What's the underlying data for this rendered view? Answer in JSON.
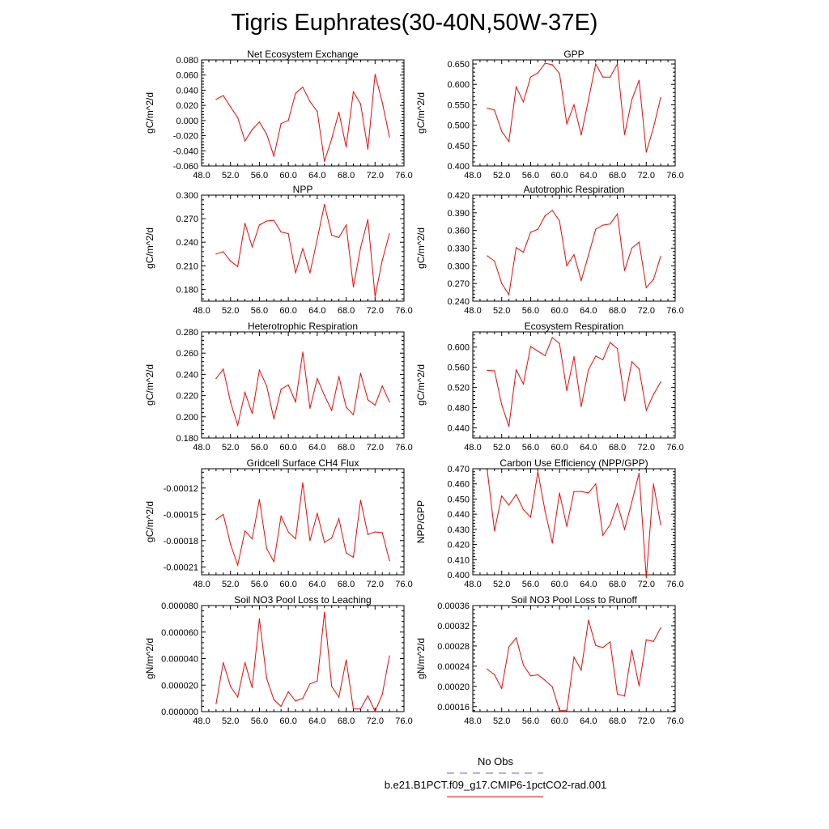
{
  "title": "Tigris Euphrates(30-40N,50W-37E)",
  "colors": {
    "model_line": "#ff0000",
    "obs_line": "#6666dd",
    "axis": "#000000"
  },
  "legend": {
    "obs_label": "No Obs",
    "model_label": "b.e21.B1PCT.f09_g17.CMIP6-1pctCO2-rad.001"
  },
  "chart_data": [
    {
      "type": "line",
      "title": "Net Ecosystem Exchange",
      "xlabel": "",
      "ylabel": "gC/m^2/d",
      "xlim": [
        48,
        76
      ],
      "ylim": [
        -0.06,
        0.08
      ],
      "xticks": [
        48,
        52,
        56,
        60,
        64,
        68,
        72,
        76
      ],
      "xtick_labels": [
        "48.0",
        "52.0",
        "56.0",
        "60.0",
        "64.0",
        "68.0",
        "72.0",
        "76.0"
      ],
      "yticks": [
        -0.06,
        -0.04,
        -0.02,
        0,
        0.02,
        0.04,
        0.06,
        0.08
      ],
      "ytick_labels": [
        "-0.060",
        "-0.040",
        "-0.020",
        "0.000",
        "0.020",
        "0.040",
        "0.060",
        "0.080"
      ],
      "x": [
        50,
        51,
        52,
        53,
        54,
        55,
        56,
        57,
        58,
        59,
        60,
        61,
        62,
        63,
        64,
        65,
        66,
        67,
        68,
        69,
        70,
        71,
        72,
        73,
        74
      ],
      "series": [
        {
          "values": [
            0.028,
            0.033,
            0.018,
            0.004,
            -0.027,
            -0.012,
            -0.002,
            -0.018,
            -0.047,
            -0.004,
            0.0,
            0.036,
            0.044,
            0.025,
            0.012,
            -0.054,
            -0.024,
            0.011,
            -0.035,
            0.038,
            0.022,
            -0.038,
            0.061,
            0.024,
            -0.022
          ]
        }
      ]
    },
    {
      "type": "line",
      "title": "GPP",
      "xlabel": "",
      "ylabel": "gC/m^2/d",
      "xlim": [
        48,
        76
      ],
      "ylim": [
        0.4,
        0.66
      ],
      "xticks": [
        48,
        52,
        56,
        60,
        64,
        68,
        72,
        76
      ],
      "xtick_labels": [
        "48.0",
        "52.0",
        "56.0",
        "60.0",
        "64.0",
        "68.0",
        "72.0",
        "76.0"
      ],
      "yticks": [
        0.4,
        0.45,
        0.5,
        0.55,
        0.6,
        0.65
      ],
      "ytick_labels": [
        "0.400",
        "0.450",
        "0.500",
        "0.550",
        "0.600",
        "0.650"
      ],
      "x": [
        50,
        51,
        52,
        53,
        54,
        55,
        56,
        57,
        58,
        59,
        60,
        61,
        62,
        63,
        64,
        65,
        66,
        67,
        68,
        69,
        70,
        71,
        72,
        73,
        74
      ],
      "series": [
        {
          "values": [
            0.542,
            0.537,
            0.485,
            0.46,
            0.594,
            0.557,
            0.618,
            0.628,
            0.652,
            0.648,
            0.627,
            0.503,
            0.55,
            0.476,
            0.562,
            0.65,
            0.618,
            0.618,
            0.65,
            0.477,
            0.562,
            0.61,
            0.434,
            0.494,
            0.568
          ]
        }
      ]
    },
    {
      "type": "line",
      "title": "NPP",
      "xlabel": "",
      "ylabel": "gC/m^2/d",
      "xlim": [
        48,
        76
      ],
      "ylim": [
        0.165,
        0.3
      ],
      "xticks": [
        48,
        52,
        56,
        60,
        64,
        68,
        72,
        76
      ],
      "xtick_labels": [
        "48.0",
        "52.0",
        "56.0",
        "60.0",
        "64.0",
        "68.0",
        "72.0",
        "76.0"
      ],
      "yticks": [
        0.18,
        0.21,
        0.24,
        0.27,
        0.3
      ],
      "ytick_labels": [
        "0.180",
        "0.210",
        "0.240",
        "0.270",
        "0.300"
      ],
      "x": [
        50,
        51,
        52,
        53,
        54,
        55,
        56,
        57,
        58,
        59,
        60,
        61,
        62,
        63,
        64,
        65,
        66,
        67,
        68,
        69,
        70,
        71,
        72,
        73,
        74
      ],
      "series": [
        {
          "values": [
            0.225,
            0.228,
            0.216,
            0.209,
            0.264,
            0.234,
            0.262,
            0.267,
            0.268,
            0.253,
            0.251,
            0.201,
            0.232,
            0.201,
            0.244,
            0.288,
            0.249,
            0.246,
            0.262,
            0.183,
            0.233,
            0.269,
            0.171,
            0.217,
            0.251
          ]
        }
      ]
    },
    {
      "type": "line",
      "title": "Autotrophic Respiration",
      "xlabel": "",
      "ylabel": "gC/m^2/d",
      "xlim": [
        48,
        76
      ],
      "ylim": [
        0.24,
        0.42
      ],
      "xticks": [
        48,
        52,
        56,
        60,
        64,
        68,
        72,
        76
      ],
      "xtick_labels": [
        "48.0",
        "52.0",
        "56.0",
        "60.0",
        "64.0",
        "68.0",
        "72.0",
        "76.0"
      ],
      "yticks": [
        0.24,
        0.27,
        0.3,
        0.33,
        0.36,
        0.39,
        0.42
      ],
      "ytick_labels": [
        "0.240",
        "0.270",
        "0.300",
        "0.330",
        "0.360",
        "0.390",
        "0.420"
      ],
      "x": [
        50,
        51,
        52,
        53,
        54,
        55,
        56,
        57,
        58,
        59,
        60,
        61,
        62,
        63,
        64,
        65,
        66,
        67,
        68,
        69,
        70,
        71,
        72,
        73,
        74
      ],
      "series": [
        {
          "values": [
            0.317,
            0.308,
            0.27,
            0.251,
            0.331,
            0.323,
            0.357,
            0.362,
            0.385,
            0.394,
            0.376,
            0.3,
            0.319,
            0.275,
            0.318,
            0.362,
            0.369,
            0.371,
            0.388,
            0.292,
            0.33,
            0.34,
            0.263,
            0.277,
            0.316
          ]
        }
      ]
    },
    {
      "type": "line",
      "title": "Heterotrophic Respiration",
      "xlabel": "",
      "ylabel": "gC/m^2/d",
      "xlim": [
        48,
        76
      ],
      "ylim": [
        0.18,
        0.28
      ],
      "xticks": [
        48,
        52,
        56,
        60,
        64,
        68,
        72,
        76
      ],
      "xtick_labels": [
        "48.0",
        "52.0",
        "56.0",
        "60.0",
        "64.0",
        "68.0",
        "72.0",
        "76.0"
      ],
      "yticks": [
        0.18,
        0.2,
        0.22,
        0.24,
        0.26,
        0.28
      ],
      "ytick_labels": [
        "0.180",
        "0.200",
        "0.220",
        "0.240",
        "0.260",
        "0.280"
      ],
      "x": [
        50,
        51,
        52,
        53,
        54,
        55,
        56,
        57,
        58,
        59,
        60,
        61,
        62,
        63,
        64,
        65,
        66,
        67,
        68,
        69,
        70,
        71,
        72,
        73,
        74
      ],
      "series": [
        {
          "values": [
            0.236,
            0.245,
            0.214,
            0.192,
            0.223,
            0.203,
            0.244,
            0.229,
            0.198,
            0.226,
            0.23,
            0.214,
            0.261,
            0.208,
            0.236,
            0.22,
            0.206,
            0.238,
            0.209,
            0.202,
            0.241,
            0.216,
            0.211,
            0.229,
            0.214
          ]
        }
      ]
    },
    {
      "type": "line",
      "title": "Ecosystem Respiration",
      "xlabel": "",
      "ylabel": "gC/m^2/d",
      "xlim": [
        48,
        76
      ],
      "ylim": [
        0.42,
        0.63
      ],
      "xticks": [
        48,
        52,
        56,
        60,
        64,
        68,
        72,
        76
      ],
      "xtick_labels": [
        "48.0",
        "52.0",
        "56.0",
        "60.0",
        "64.0",
        "68.0",
        "72.0",
        "76.0"
      ],
      "yticks": [
        0.44,
        0.48,
        0.52,
        0.56,
        0.6
      ],
      "ytick_labels": [
        "0.440",
        "0.480",
        "0.520",
        "0.560",
        "0.600"
      ],
      "x": [
        50,
        51,
        52,
        53,
        54,
        55,
        56,
        57,
        58,
        59,
        60,
        61,
        62,
        63,
        64,
        65,
        66,
        67,
        68,
        69,
        70,
        71,
        72,
        73,
        74
      ],
      "series": [
        {
          "values": [
            0.554,
            0.553,
            0.486,
            0.443,
            0.555,
            0.527,
            0.601,
            0.592,
            0.583,
            0.619,
            0.607,
            0.514,
            0.581,
            0.482,
            0.555,
            0.582,
            0.575,
            0.609,
            0.597,
            0.494,
            0.571,
            0.557,
            0.475,
            0.506,
            0.531
          ]
        }
      ]
    },
    {
      "type": "line",
      "title": "Gridcell Surface CH4 Flux",
      "xlabel": "",
      "ylabel": "gC/m^2/d",
      "xlim": [
        48,
        76
      ],
      "ylim": [
        -0.000219,
        -9.8e-05
      ],
      "xticks": [
        48,
        52,
        56,
        60,
        64,
        68,
        72,
        76
      ],
      "xtick_labels": [
        "48.0",
        "52.0",
        "56.0",
        "60.0",
        "64.0",
        "68.0",
        "72.0",
        "76.0"
      ],
      "yticks": [
        -0.00021,
        -0.00018,
        -0.00015,
        -0.00012
      ],
      "ytick_labels": [
        "-0.00021",
        "-0.00018",
        "-0.00015",
        "-0.00012"
      ],
      "x": [
        50,
        51,
        52,
        53,
        54,
        55,
        56,
        57,
        58,
        59,
        60,
        61,
        62,
        63,
        64,
        65,
        66,
        67,
        68,
        69,
        70,
        71,
        72,
        73,
        74
      ],
      "series": [
        {
          "values": [
            -0.000156,
            -0.00015,
            -0.000184,
            -0.000208,
            -0.000169,
            -0.000178,
            -0.000133,
            -0.000189,
            -0.000204,
            -0.000152,
            -0.00017,
            -0.000178,
            -0.000114,
            -0.00018,
            -0.000149,
            -0.000182,
            -0.000177,
            -0.000155,
            -0.000194,
            -0.000199,
            -0.000134,
            -0.000173,
            -0.00017,
            -0.000171,
            -0.000203
          ]
        }
      ]
    },
    {
      "type": "line",
      "title": "Carbon Use Efficiency (NPP/GPP)",
      "xlabel": "",
      "ylabel": "NPP/GPP",
      "xlim": [
        48,
        76
      ],
      "ylim": [
        0.4,
        0.47
      ],
      "xticks": [
        48,
        52,
        56,
        60,
        64,
        68,
        72,
        76
      ],
      "xtick_labels": [
        "48.0",
        "52.0",
        "56.0",
        "60.0",
        "64.0",
        "68.0",
        "72.0",
        "76.0"
      ],
      "yticks": [
        0.4,
        0.41,
        0.42,
        0.43,
        0.44,
        0.45,
        0.46,
        0.47
      ],
      "ytick_labels": [
        "0.400",
        "0.410",
        "0.420",
        "0.430",
        "0.440",
        "0.450",
        "0.460",
        "0.470"
      ],
      "x": [
        50,
        51,
        52,
        53,
        54,
        55,
        56,
        57,
        58,
        59,
        60,
        61,
        62,
        63,
        64,
        65,
        66,
        67,
        68,
        69,
        70,
        71,
        72,
        73,
        74
      ],
      "series": [
        {
          "values": [
            0.469,
            0.429,
            0.452,
            0.446,
            0.453,
            0.443,
            0.438,
            0.468,
            0.442,
            0.421,
            0.454,
            0.432,
            0.455,
            0.455,
            0.454,
            0.46,
            0.426,
            0.433,
            0.447,
            0.43,
            0.448,
            0.467,
            0.398,
            0.46,
            0.433
          ]
        }
      ]
    },
    {
      "type": "line",
      "title": "Soil NO3 Pool Loss to Leaching",
      "xlabel": "",
      "ylabel": "gN/m^2/d",
      "xlim": [
        48,
        76
      ],
      "ylim": [
        0,
        8e-05
      ],
      "xticks": [
        48,
        52,
        56,
        60,
        64,
        68,
        72,
        76
      ],
      "xtick_labels": [
        "48.0",
        "52.0",
        "56.0",
        "60.0",
        "64.0",
        "68.0",
        "72.0",
        "76.0"
      ],
      "yticks": [
        0,
        2e-05,
        4e-05,
        6e-05,
        8e-05
      ],
      "ytick_labels": [
        "0.000000",
        "0.000020",
        "0.000040",
        "0.000060",
        "0.000080"
      ],
      "x": [
        50,
        51,
        52,
        53,
        54,
        55,
        56,
        57,
        58,
        59,
        60,
        61,
        62,
        63,
        64,
        65,
        66,
        67,
        68,
        69,
        70,
        71,
        72,
        73,
        74
      ],
      "series": [
        {
          "values": [
            6e-06,
            3.7e-05,
            1.9e-05,
            1.1e-05,
            3.7e-05,
            1.8e-05,
            7e-05,
            2.5e-05,
            9e-06,
            4e-06,
            1.5e-05,
            8e-06,
            1e-05,
            2.1e-05,
            2.3e-05,
            7.5e-05,
            1.9e-05,
            1.1e-05,
            3.9e-05,
            2e-06,
            2e-06,
            1.2e-05,
            0.0,
            1.3e-05,
            4.2e-05
          ]
        }
      ]
    },
    {
      "type": "line",
      "title": "Soil NO3 Pool Loss to Runoff",
      "xlabel": "",
      "ylabel": "gN/m^2/d",
      "xlim": [
        48,
        76
      ],
      "ylim": [
        0.00015,
        0.00036
      ],
      "xticks": [
        48,
        52,
        56,
        60,
        64,
        68,
        72,
        76
      ],
      "xtick_labels": [
        "48.0",
        "52.0",
        "56.0",
        "60.0",
        "64.0",
        "68.0",
        "72.0",
        "76.0"
      ],
      "yticks": [
        0.00016,
        0.0002,
        0.00024,
        0.00028,
        0.00032,
        0.00036
      ],
      "ytick_labels": [
        "0.00016",
        "0.00020",
        "0.00024",
        "0.00028",
        "0.00032",
        "0.00036"
      ],
      "x": [
        50,
        51,
        52,
        53,
        54,
        55,
        56,
        57,
        58,
        59,
        60,
        61,
        62,
        63,
        64,
        65,
        66,
        67,
        68,
        69,
        70,
        71,
        72,
        73,
        74
      ],
      "series": [
        {
          "values": [
            0.000234,
            0.000223,
            0.000196,
            0.000278,
            0.000296,
            0.000242,
            0.000221,
            0.000223,
            0.000212,
            0.000199,
            0.000152,
            0.000152,
            0.000258,
            0.000232,
            0.000331,
            0.000281,
            0.000277,
            0.000288,
            0.000185,
            0.000181,
            0.000272,
            0.000201,
            0.000292,
            0.000289,
            0.000316
          ]
        }
      ]
    }
  ]
}
